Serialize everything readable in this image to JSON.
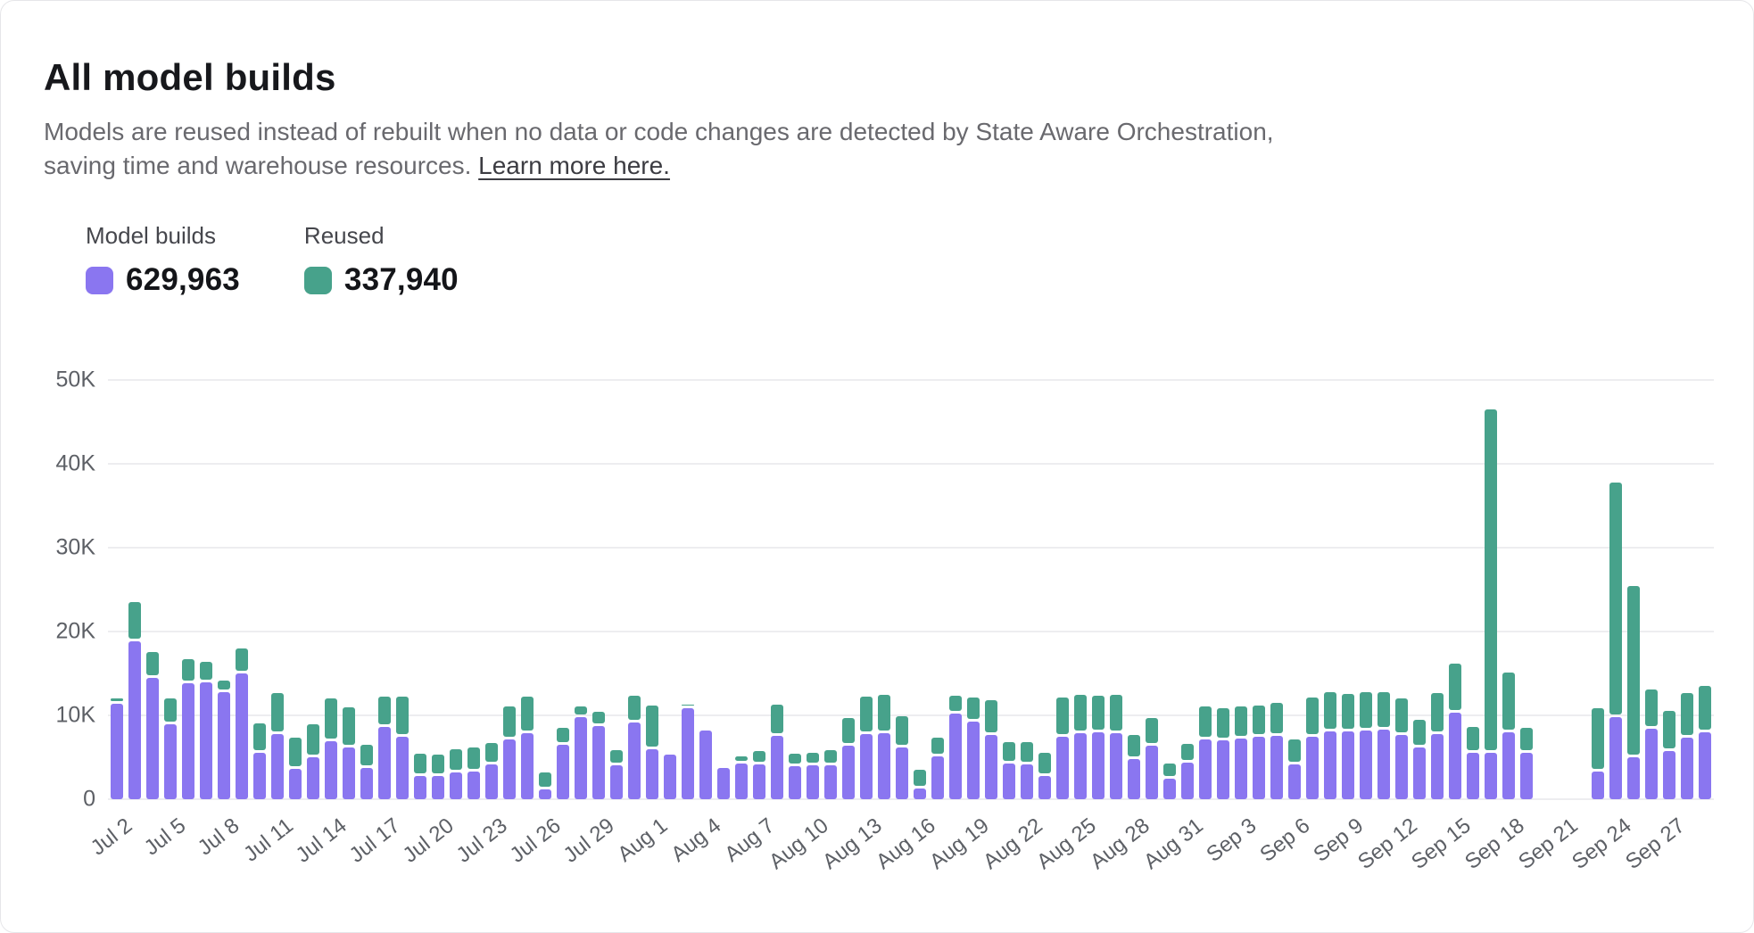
{
  "page": {
    "title": "All model builds",
    "description": "Models are reused instead of rebuilt when no data or code changes are detected by State Aware Orchestration, saving time and warehouse resources.",
    "link_text": "Learn more here."
  },
  "legend": [
    {
      "label": "Model builds",
      "value": "629,963",
      "color": "#8a76f0"
    },
    {
      "label": "Reused",
      "value": "337,940",
      "color": "#47a28b"
    }
  ],
  "chart_data": {
    "type": "bar",
    "stacked": true,
    "ylim": [
      0,
      50000
    ],
    "y_ticks": [
      "0",
      "10K",
      "20K",
      "30K",
      "40K",
      "50K"
    ],
    "x_tick_every": 3,
    "grid": true,
    "legend_position": "top-left",
    "x": [
      "Jul 2",
      "Jul 3",
      "Jul 4",
      "Jul 5",
      "Jul 6",
      "Jul 7",
      "Jul 8",
      "Jul 9",
      "Jul 10",
      "Jul 11",
      "Jul 12",
      "Jul 13",
      "Jul 14",
      "Jul 15",
      "Jul 16",
      "Jul 17",
      "Jul 18",
      "Jul 19",
      "Jul 20",
      "Jul 21",
      "Jul 22",
      "Jul 23",
      "Jul 24",
      "Jul 25",
      "Jul 26",
      "Jul 27",
      "Jul 28",
      "Jul 29",
      "Jul 30",
      "Jul 31",
      "Aug 1",
      "Aug 2",
      "Aug 3",
      "Aug 4",
      "Aug 5",
      "Aug 6",
      "Aug 7",
      "Aug 8",
      "Aug 9",
      "Aug 10",
      "Aug 11",
      "Aug 12",
      "Aug 13",
      "Aug 14",
      "Aug 15",
      "Aug 16",
      "Aug 17",
      "Aug 18",
      "Aug 19",
      "Aug 20",
      "Aug 21",
      "Aug 22",
      "Aug 23",
      "Aug 24",
      "Aug 25",
      "Aug 26",
      "Aug 27",
      "Aug 28",
      "Aug 29",
      "Aug 30",
      "Aug 31",
      "Sep 1",
      "Sep 2",
      "Sep 3",
      "Sep 4",
      "Sep 5",
      "Sep 6",
      "Sep 7",
      "Sep 8",
      "Sep 9",
      "Sep 10",
      "Sep 11",
      "Sep 12",
      "Sep 13",
      "Sep 14",
      "Sep 15",
      "Sep 16",
      "Sep 17",
      "Sep 18",
      "Sep 19",
      "Sep 20",
      "Sep 21",
      "Sep 22",
      "Sep 23",
      "Sep 24",
      "Sep 25",
      "Sep 26",
      "Sep 27",
      "Sep 28",
      "Sep 29"
    ],
    "series": [
      {
        "name": "Model builds",
        "color": "#8a76f0",
        "values": [
          11400,
          18800,
          14500,
          8900,
          13800,
          13900,
          12800,
          15000,
          5500,
          7800,
          3600,
          5000,
          6900,
          6200,
          3700,
          8600,
          7400,
          2800,
          2800,
          3200,
          3300,
          4200,
          7100,
          7900,
          1200,
          6500,
          9800,
          8700,
          4000,
          9200,
          6000,
          5300,
          10800,
          8200,
          3700,
          4300,
          4100,
          7600,
          3900,
          4000,
          4000,
          6400,
          7800,
          7900,
          6200,
          1300,
          5100,
          10200,
          9300,
          7700,
          4300,
          4200,
          2800,
          7500,
          7900,
          8000,
          7900,
          4800,
          6400,
          2400,
          4400,
          7100,
          7000,
          7200,
          7500,
          7600,
          4200,
          7500,
          8100,
          8100,
          8200,
          8300,
          7700,
          6200,
          7800,
          10300,
          5500,
          5500,
          8000,
          5500,
          0,
          0,
          0,
          3300,
          9800,
          5000,
          8400,
          5700,
          7300,
          8000
        ]
      },
      {
        "name": "Reused",
        "color": "#47a28b",
        "values": [
          300,
          4400,
          2700,
          2800,
          2600,
          2200,
          1000,
          2700,
          3200,
          4500,
          3400,
          3600,
          4800,
          4400,
          2500,
          3300,
          4500,
          2300,
          2200,
          2400,
          2500,
          2200,
          3600,
          4000,
          1700,
          1700,
          1000,
          1400,
          1500,
          2800,
          4900,
          0,
          200,
          0,
          0,
          500,
          1300,
          3400,
          1200,
          1200,
          1500,
          3000,
          4100,
          4200,
          3400,
          1900,
          1900,
          1800,
          2500,
          3800,
          2200,
          2300,
          2400,
          4300,
          4200,
          4000,
          4200,
          2500,
          3000,
          1500,
          1900,
          3600,
          3500,
          3500,
          3400,
          3600,
          2600,
          4300,
          4300,
          4100,
          4200,
          4100,
          4000,
          3000,
          4500,
          5600,
          2800,
          40700,
          6800,
          2700,
          0,
          0,
          0,
          7200,
          27700,
          20100,
          4400,
          4500,
          5000,
          5200
        ]
      }
    ]
  }
}
